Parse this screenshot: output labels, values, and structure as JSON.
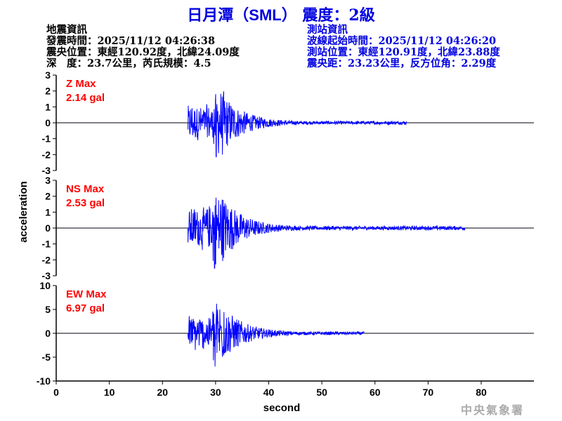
{
  "title": {
    "station": "日月潭",
    "code": "（SML）",
    "intensity": "震度：2級"
  },
  "earthquake_info": {
    "heading": "地震資訊",
    "origin_time": "發震時間：2025/11/12 04:26:38",
    "epicenter": "震央位置：東經120.92度，北緯24.09度",
    "depth_magnitude": "深　度：23.7公里，芮氏規模：4.5"
  },
  "station_info": {
    "heading": "測站資訊",
    "waveform_start": "波線起始時間：2025/11/12 04:26:20",
    "location": "測站位置：東經120.91度，北緯23.88度",
    "distance": "震央距：23.23公里，反方位角：2.29度"
  },
  "watermark": "中央氣象署",
  "colors": {
    "trace": "#0000ff",
    "max_label": "#ff0000",
    "title": "#0000e0"
  },
  "chart_data": [
    {
      "type": "line",
      "component": "Z",
      "max_label": "Z Max",
      "max_value": "2.14 gal",
      "ylim": [
        -3,
        3
      ],
      "yticks": [
        "3",
        "2",
        "1",
        "0",
        "-1",
        "-2",
        "-3"
      ],
      "ytick_values": [
        3,
        2,
        1,
        0,
        -1,
        -2,
        -3
      ],
      "signal_start": 24.8,
      "peak_time": 30.1,
      "signal_end": 66,
      "peak": 2.14
    },
    {
      "type": "line",
      "component": "NS",
      "max_label": "NS Max",
      "max_value": "2.53 gal",
      "ylim": [
        -3,
        3
      ],
      "yticks": [
        "3",
        "2",
        "1",
        "0",
        "-1",
        "-2",
        "-3"
      ],
      "ytick_values": [
        3,
        2,
        1,
        0,
        -1,
        -2,
        -3
      ],
      "signal_start": 24.8,
      "peak_time": 29.8,
      "signal_end": 77,
      "peak": 2.53
    },
    {
      "type": "line",
      "component": "EW",
      "max_label": "EW Max",
      "max_value": "6.97 gal",
      "ylim": [
        -10,
        10
      ],
      "yticks": [
        "10",
        "5",
        "0",
        "-5",
        "-10"
      ],
      "ytick_values": [
        10,
        5,
        0,
        -5,
        -10
      ],
      "signal_start": 24.8,
      "peak_time": 29.9,
      "signal_end": 58,
      "peak": 6.97
    }
  ],
  "x_axis": {
    "label": "second",
    "xlim": [
      0,
      90
    ],
    "ticks": [
      "0",
      "10",
      "20",
      "30",
      "40",
      "50",
      "60",
      "70",
      "80"
    ],
    "tick_values": [
      0,
      10,
      20,
      30,
      40,
      50,
      60,
      70,
      80
    ]
  },
  "y_axis": {
    "label": "acceleration"
  }
}
